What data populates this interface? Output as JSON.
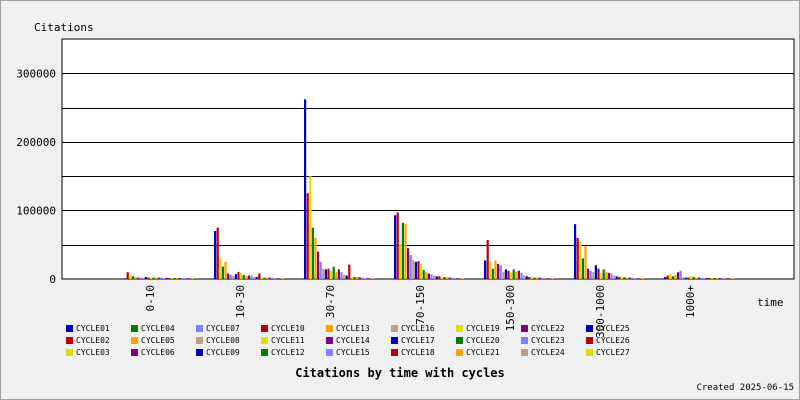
{
  "chart_data": {
    "type": "bar",
    "title": "Citations by time with cycles",
    "ylabel": "Citations",
    "xlabel": "time",
    "ylim": [
      0,
      350000
    ],
    "yticks": [
      0,
      100000,
      200000,
      300000
    ],
    "grid": true,
    "legend_position": "bottom",
    "categories": [
      "0-10",
      "10-30",
      "30-70",
      "70-150",
      "150-300",
      "300-1000",
      "1000+"
    ],
    "series": [
      {
        "name": "CYCLE01",
        "color": "#0000c0",
        "values": [
          1000,
          70000,
          262000,
          93000,
          27000,
          80000,
          3000
        ]
      },
      {
        "name": "CYCLE02",
        "color": "#c00000",
        "values": [
          10000,
          75000,
          125000,
          97000,
          57000,
          60000,
          5000
        ]
      },
      {
        "name": "CYCLE03",
        "color": "#e0e000",
        "values": [
          5000,
          30000,
          150000,
          50000,
          25000,
          55000,
          8000
        ]
      },
      {
        "name": "CYCLE04",
        "color": "#008000",
        "values": [
          4000,
          18000,
          75000,
          82000,
          15000,
          30000,
          4000
        ]
      },
      {
        "name": "CYCLE05",
        "color": "#ffa000",
        "values": [
          3000,
          25000,
          60000,
          80000,
          27000,
          48000,
          6000
        ]
      },
      {
        "name": "CYCLE06",
        "color": "#800080",
        "values": [
          2000,
          8000,
          40000,
          45000,
          22000,
          15000,
          10000
        ]
      },
      {
        "name": "CYCLE07",
        "color": "#8080ff",
        "values": [
          2000,
          6000,
          25000,
          35000,
          20000,
          12000,
          12000
        ]
      },
      {
        "name": "CYCLE08",
        "color": "#c0a080",
        "values": [
          2000,
          5000,
          15000,
          28000,
          10000,
          10000,
          3000
        ]
      },
      {
        "name": "CYCLE09",
        "color": "#0000c0",
        "values": [
          3000,
          7000,
          14000,
          25000,
          14000,
          20000,
          2000
        ]
      },
      {
        "name": "CYCLE10",
        "color": "#c00000",
        "values": [
          2000,
          10000,
          15000,
          26000,
          12000,
          15000,
          2000
        ]
      },
      {
        "name": "CYCLE11",
        "color": "#e0e000",
        "values": [
          2000,
          9000,
          12000,
          22000,
          10000,
          8000,
          4000
        ]
      },
      {
        "name": "CYCLE12",
        "color": "#008000",
        "values": [
          2000,
          6000,
          18000,
          13000,
          14000,
          14000,
          3000
        ]
      },
      {
        "name": "CYCLE13",
        "color": "#ffa000",
        "values": [
          2000,
          4000,
          10000,
          10000,
          11000,
          10000,
          2000
        ]
      },
      {
        "name": "CYCLE14",
        "color": "#800080",
        "values": [
          2000,
          5000,
          14000,
          8000,
          12000,
          9000,
          2000
        ]
      },
      {
        "name": "CYCLE15",
        "color": "#8080ff",
        "values": [
          2000,
          5000,
          10000,
          7000,
          9000,
          8000,
          2000
        ]
      },
      {
        "name": "CYCLE16",
        "color": "#c0a080",
        "values": [
          1500,
          3000,
          6000,
          5000,
          5000,
          5000,
          1500
        ]
      },
      {
        "name": "CYCLE17",
        "color": "#0000c0",
        "values": [
          1500,
          3000,
          5000,
          4000,
          4000,
          4000,
          1500
        ]
      },
      {
        "name": "CYCLE18",
        "color": "#c00000",
        "values": [
          1500,
          8000,
          21000,
          4000,
          3000,
          3000,
          1500
        ]
      },
      {
        "name": "CYCLE19",
        "color": "#e0e000",
        "values": [
          1500,
          2000,
          3000,
          3000,
          3000,
          3000,
          1500
        ]
      },
      {
        "name": "CYCLE20",
        "color": "#008000",
        "values": [
          1500,
          2000,
          3000,
          3000,
          2000,
          2500,
          1500
        ]
      },
      {
        "name": "CYCLE21",
        "color": "#ffa000",
        "values": [
          1500,
          2000,
          3000,
          2500,
          2000,
          2000,
          1500
        ]
      },
      {
        "name": "CYCLE22",
        "color": "#800080",
        "values": [
          1500,
          2000,
          2500,
          2000,
          2000,
          2000,
          1500
        ]
      },
      {
        "name": "CYCLE23",
        "color": "#8080ff",
        "values": [
          1500,
          2000,
          2000,
          2000,
          1500,
          2000,
          1500
        ]
      },
      {
        "name": "CYCLE24",
        "color": "#c0a080",
        "values": [
          1500,
          1500,
          1500,
          1500,
          1500,
          1500,
          1500
        ]
      },
      {
        "name": "CYCLE25",
        "color": "#0000c0",
        "values": [
          1000,
          1000,
          1000,
          1000,
          1000,
          1000,
          1000
        ]
      },
      {
        "name": "CYCLE26",
        "color": "#c00000",
        "values": [
          1000,
          1000,
          1000,
          1000,
          1000,
          1000,
          1000
        ]
      },
      {
        "name": "CYCLE27",
        "color": "#e0e000",
        "values": [
          1000,
          1000,
          1000,
          1000,
          1000,
          1000,
          1000
        ]
      }
    ]
  },
  "footer": {
    "created": "Created 2025-06-15"
  }
}
